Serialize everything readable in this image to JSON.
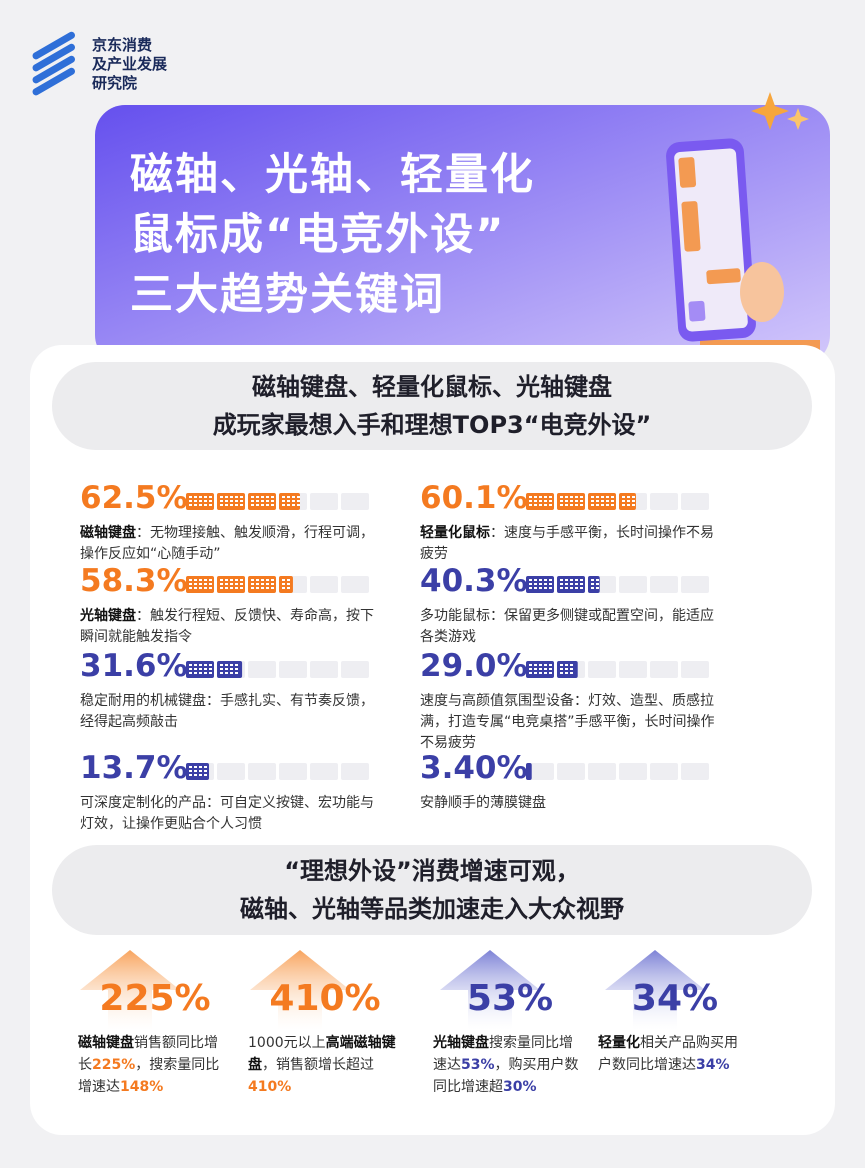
{
  "header": {
    "org": [
      "京东消费",
      "及产业发展",
      "研究院"
    ]
  },
  "banner": {
    "title": [
      "磁轴、光轴、轻量化",
      "鼠标成“电竞外设”",
      "三大趋势关键词"
    ]
  },
  "section1": {
    "title": [
      "磁轴键盘、轻量化鼠标、光轴键盘",
      "成玩家最想入手和理想TOP3“电竞外设”"
    ],
    "items": [
      {
        "value": 62.5,
        "label": "62.5%",
        "color": "#f47a20",
        "term": "磁轴键盘",
        "text": "：无物理接触、触发顺滑，行程可调，操作反应如“心随手动”"
      },
      {
        "value": 60.1,
        "label": "60.1%",
        "color": "#f47a20",
        "term": "轻量化鼠标",
        "text": "：速度与手感平衡，长时间操作不易疲劳"
      },
      {
        "value": 58.3,
        "label": "58.3%",
        "color": "#f47a20",
        "term": "光轴键盘",
        "text": "：触发行程短、反馈快、寿命高，按下瞬间就能触发指令"
      },
      {
        "value": 40.3,
        "label": "40.3%",
        "color": "#3b3fa6",
        "text": "多功能鼠标：保留更多侧键或配置空间，能适应各类游戏"
      },
      {
        "value": 31.6,
        "label": "31.6%",
        "color": "#3b3fa6",
        "text": "稳定耐用的机械键盘：手感扎实、有节奏反馈，经得起高频敲击"
      },
      {
        "value": 29.0,
        "label": "29.0%",
        "color": "#3b3fa6",
        "text": "速度与高颜值氛围型设备：灯效、造型、质感拉满，打造专属“电竞桌搭”手感平衡，长时间操作不易疲劳"
      },
      {
        "value": 13.7,
        "label": "13.7%",
        "color": "#3b3fa6",
        "text": "可深度定制化的产品：可自定义按键、宏功能与灯效，让操作更贴合个人习惯"
      },
      {
        "value": 3.4,
        "label": "3.40%",
        "color": "#3b3fa6",
        "text": "安静顺手的薄膜键盘"
      }
    ]
  },
  "section2": {
    "title": [
      "“理想外设”消费增速可观，",
      "磁轴、光轴等品类加速走入大众视野"
    ],
    "stats": [
      {
        "big": "225%",
        "color": "#f47a20",
        "parts": [
          {
            "text": "磁轴键盘",
            "strong": true
          },
          {
            "text": "销售额同比增长"
          },
          {
            "text": "225%",
            "accent": true
          },
          {
            "text": "，搜索量同比增速达"
          },
          {
            "text": "148%",
            "accent": true
          }
        ]
      },
      {
        "big": "410%",
        "color": "#f47a20",
        "parts": [
          {
            "text": "1000元以上"
          },
          {
            "text": "高端磁轴键盘",
            "strong": true
          },
          {
            "text": "，销售额增长超过"
          },
          {
            "text": "410%",
            "accent": true
          }
        ]
      },
      {
        "big": "53%",
        "color": "#3b3fa6",
        "parts": [
          {
            "text": "光轴键盘",
            "strong": true
          },
          {
            "text": "搜索量同比增速达"
          },
          {
            "text": "53%",
            "accent": true
          },
          {
            "text": "，购买用户数同比增速超"
          },
          {
            "text": "30%",
            "accent": true
          }
        ]
      },
      {
        "big": "34%",
        "color": "#3b3fa6",
        "parts": [
          {
            "text": "轻量化",
            "strong": true
          },
          {
            "text": "相关产品购买用户数同比增速达"
          },
          {
            "text": "34%",
            "accent": true
          }
        ]
      }
    ]
  }
}
